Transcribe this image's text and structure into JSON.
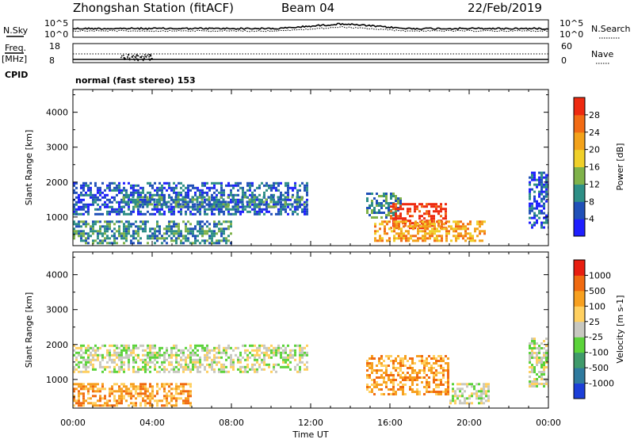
{
  "header": {
    "station": "Zhongshan Station (fitACF)",
    "beam": "Beam 04",
    "date": "22/Feb/2019",
    "cpid_label": "CPID",
    "cpid_value": "normal (fast stereo) 153"
  },
  "side_labels": {
    "nsky": "N.Sky",
    "freq": "Freq.",
    "freq_unit": "[MHz]",
    "nsearch": "N.Search",
    "nave": "Nave"
  },
  "small_ticks": {
    "nsky_top": "10^5",
    "nsky_bottom": "10^0",
    "nsearch_top": "10^5",
    "nsearch_bottom": "10^0",
    "freq_top": "18",
    "freq_bottom": "8",
    "nave_top": "60",
    "nave_bottom": "0"
  },
  "chart_data": [
    {
      "type": "heatmap",
      "panel": "power",
      "xlabel": "",
      "ylabel": "Slant Range [km]",
      "x_range_hours": [
        0,
        24
      ],
      "ylim": [
        180,
        4650
      ],
      "y_ticks": [
        1000,
        2000,
        3000,
        4000
      ],
      "colorbar": {
        "label": "Power [dB]",
        "ticks": [
          "4",
          "8",
          "12",
          "16",
          "20",
          "24",
          "28"
        ],
        "colors": [
          "#1f1fff",
          "#2050b8",
          "#2e8f86",
          "#7fb24a",
          "#f0d02a",
          "#f3a21a",
          "#f26b14",
          "#ee2a10"
        ]
      },
      "regions": [
        {
          "t": [
            0.0,
            11.8
          ],
          "r": [
            1100,
            2000
          ],
          "level": 1
        },
        {
          "t": [
            2.5,
            11.8
          ],
          "r": [
            1300,
            1600
          ],
          "level": 2
        },
        {
          "t": [
            0.0,
            8.0
          ],
          "r": [
            250,
            900
          ],
          "level": 2
        },
        {
          "t": [
            14.8,
            16.5
          ],
          "r": [
            1000,
            1700
          ],
          "level": 2
        },
        {
          "t": [
            16.0,
            18.8
          ],
          "r": [
            700,
            1400
          ],
          "level": 7
        },
        {
          "t": [
            15.2,
            20.8
          ],
          "r": [
            300,
            900
          ],
          "level": 5
        },
        {
          "t": [
            23.0,
            24.0
          ],
          "r": [
            700,
            2300
          ],
          "level": 1
        }
      ]
    },
    {
      "type": "heatmap",
      "panel": "velocity",
      "xlabel": "Time UT",
      "ylabel": "Slant Range [km]",
      "x_range_hours": [
        0,
        24
      ],
      "x_tick_labels": [
        "00:00",
        "04:00",
        "08:00",
        "12:00",
        "16:00",
        "20:00",
        "00:00"
      ],
      "ylim": [
        180,
        4650
      ],
      "y_ticks": [
        1000,
        2000,
        3000,
        4000
      ],
      "colorbar": {
        "label": "Velocity [m s-1]",
        "ticks": [
          "1000",
          "500",
          "100",
          "25",
          "-25",
          "-100",
          "-500",
          "-1000"
        ],
        "colors": [
          "#1c3fd8",
          "#2f7a9e",
          "#3f9a6a",
          "#5bd33a",
          "#c8c8c0",
          "#ffd060",
          "#f7a020",
          "#f06a10",
          "#e81e10"
        ]
      },
      "regions": [
        {
          "t": [
            0.0,
            11.8
          ],
          "r": [
            1200,
            2000
          ],
          "level": 4
        },
        {
          "t": [
            0.0,
            6.0
          ],
          "r": [
            250,
            900
          ],
          "level": 6
        },
        {
          "t": [
            14.8,
            19.0
          ],
          "r": [
            600,
            1700
          ],
          "level": 6
        },
        {
          "t": [
            19.0,
            21.0
          ],
          "r": [
            300,
            900
          ],
          "level": 4
        },
        {
          "t": [
            23.0,
            24.0
          ],
          "r": [
            800,
            2200
          ],
          "level": 4
        }
      ]
    }
  ]
}
